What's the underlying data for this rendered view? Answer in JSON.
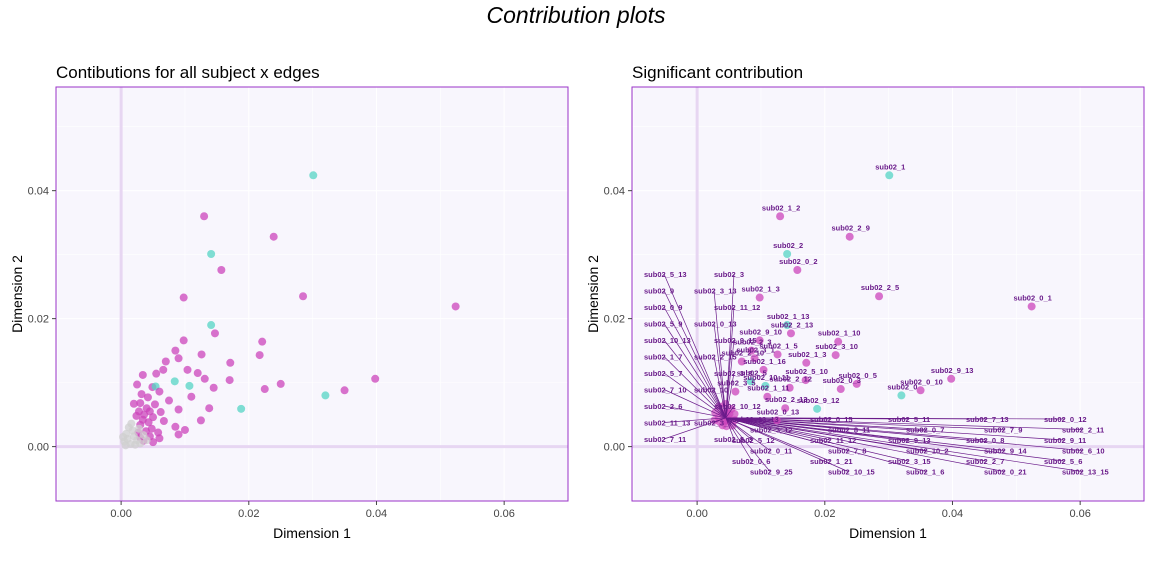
{
  "title": "Contribution plots",
  "colors": {
    "panel_bg": "#f8f6fd",
    "border": "#9a33c8",
    "origin_line": "#e7d6f2",
    "grid": "#ffffff",
    "magenta": "#cc44bb",
    "teal": "#55d4c4",
    "grey": "#cfcfcf",
    "label": "#6a1b8a",
    "segment": "#6a1b8a"
  },
  "chart_data": [
    {
      "type": "scatter",
      "title": "Contibutions for all subject x edges",
      "xlabel": "Dimension 1",
      "ylabel": "Dimension 2",
      "xlim": [
        -0.0102,
        0.07
      ],
      "ylim": [
        -0.0085,
        0.0562
      ],
      "xticks": [
        0.0,
        0.02,
        0.04,
        0.06
      ],
      "yticks": [
        0.0,
        0.02,
        0.04
      ],
      "tick_labels_x": [
        "0.00",
        "0.02",
        "0.04",
        "0.06"
      ],
      "tick_labels_y": [
        "0.00",
        "0.02",
        "0.04"
      ],
      "grid": true,
      "points": [
        {
          "x": 0.0301,
          "y": 0.0424,
          "color": "teal"
        },
        {
          "x": 0.0524,
          "y": 0.0219,
          "color": "magenta"
        },
        {
          "x": 0.013,
          "y": 0.036,
          "color": "magenta"
        },
        {
          "x": 0.0239,
          "y": 0.0328,
          "color": "magenta"
        },
        {
          "x": 0.0141,
          "y": 0.0301,
          "color": "teal"
        },
        {
          "x": 0.0157,
          "y": 0.0276,
          "color": "magenta"
        },
        {
          "x": 0.0285,
          "y": 0.0235,
          "color": "magenta"
        },
        {
          "x": 0.0098,
          "y": 0.0233,
          "color": "magenta"
        },
        {
          "x": 0.0141,
          "y": 0.019,
          "color": "teal"
        },
        {
          "x": 0.0147,
          "y": 0.0177,
          "color": "magenta"
        },
        {
          "x": 0.0221,
          "y": 0.0164,
          "color": "magenta"
        },
        {
          "x": 0.0098,
          "y": 0.0166,
          "color": "magenta"
        },
        {
          "x": 0.0085,
          "y": 0.015,
          "color": "magenta"
        },
        {
          "x": 0.0126,
          "y": 0.0144,
          "color": "magenta"
        },
        {
          "x": 0.0217,
          "y": 0.0143,
          "color": "magenta"
        },
        {
          "x": 0.009,
          "y": 0.0138,
          "color": "magenta"
        },
        {
          "x": 0.007,
          "y": 0.0133,
          "color": "magenta"
        },
        {
          "x": 0.0171,
          "y": 0.0131,
          "color": "magenta"
        },
        {
          "x": 0.0104,
          "y": 0.012,
          "color": "magenta"
        },
        {
          "x": 0.012,
          "y": 0.0115,
          "color": "magenta"
        },
        {
          "x": 0.0055,
          "y": 0.0114,
          "color": "magenta"
        },
        {
          "x": 0.0066,
          "y": 0.012,
          "color": "magenta"
        },
        {
          "x": 0.0034,
          "y": 0.0112,
          "color": "magenta"
        },
        {
          "x": 0.0398,
          "y": 0.0106,
          "color": "magenta"
        },
        {
          "x": 0.0131,
          "y": 0.0106,
          "color": "magenta"
        },
        {
          "x": 0.0084,
          "y": 0.0102,
          "color": "teal"
        },
        {
          "x": 0.017,
          "y": 0.0104,
          "color": "magenta"
        },
        {
          "x": 0.025,
          "y": 0.0098,
          "color": "magenta"
        },
        {
          "x": 0.0107,
          "y": 0.0095,
          "color": "teal"
        },
        {
          "x": 0.0025,
          "y": 0.0097,
          "color": "magenta"
        },
        {
          "x": 0.0049,
          "y": 0.0093,
          "color": "magenta"
        },
        {
          "x": 0.0054,
          "y": 0.0094,
          "color": "teal"
        },
        {
          "x": 0.0145,
          "y": 0.0092,
          "color": "magenta"
        },
        {
          "x": 0.0225,
          "y": 0.009,
          "color": "magenta"
        },
        {
          "x": 0.035,
          "y": 0.0088,
          "color": "magenta"
        },
        {
          "x": 0.032,
          "y": 0.008,
          "color": "teal"
        },
        {
          "x": 0.006,
          "y": 0.0086,
          "color": "magenta"
        },
        {
          "x": 0.0032,
          "y": 0.0082,
          "color": "magenta"
        },
        {
          "x": 0.0042,
          "y": 0.0077,
          "color": "magenta"
        },
        {
          "x": 0.011,
          "y": 0.0078,
          "color": "magenta"
        },
        {
          "x": 0.0075,
          "y": 0.0072,
          "color": "magenta"
        },
        {
          "x": 0.003,
          "y": 0.0068,
          "color": "magenta"
        },
        {
          "x": 0.0053,
          "y": 0.0066,
          "color": "magenta"
        },
        {
          "x": 0.0188,
          "y": 0.0059,
          "color": "teal"
        },
        {
          "x": 0.002,
          "y": 0.0067,
          "color": "magenta"
        },
        {
          "x": 0.0138,
          "y": 0.006,
          "color": "magenta"
        },
        {
          "x": 0.009,
          "y": 0.0058,
          "color": "magenta"
        },
        {
          "x": 0.004,
          "y": 0.006,
          "color": "magenta"
        },
        {
          "x": 0.0028,
          "y": 0.0055,
          "color": "magenta"
        },
        {
          "x": 0.0062,
          "y": 0.0054,
          "color": "magenta"
        },
        {
          "x": 0.0045,
          "y": 0.0055,
          "color": "magenta"
        },
        {
          "x": 0.0036,
          "y": 0.005,
          "color": "magenta"
        },
        {
          "x": 0.0024,
          "y": 0.0048,
          "color": "magenta"
        },
        {
          "x": 0.005,
          "y": 0.0046,
          "color": "magenta"
        },
        {
          "x": 0.0034,
          "y": 0.0042,
          "color": "magenta"
        },
        {
          "x": 0.0125,
          "y": 0.0041,
          "color": "magenta"
        },
        {
          "x": 0.0067,
          "y": 0.004,
          "color": "magenta"
        },
        {
          "x": 0.0043,
          "y": 0.0038,
          "color": "magenta"
        },
        {
          "x": 0.003,
          "y": 0.0034,
          "color": "magenta"
        },
        {
          "x": 0.0085,
          "y": 0.0031,
          "color": "magenta"
        },
        {
          "x": 0.0048,
          "y": 0.0028,
          "color": "magenta"
        },
        {
          "x": 0.01,
          "y": 0.0026,
          "color": "magenta"
        },
        {
          "x": 0.0039,
          "y": 0.0024,
          "color": "magenta"
        },
        {
          "x": 0.0027,
          "y": 0.0022,
          "color": "magenta"
        },
        {
          "x": 0.0058,
          "y": 0.0022,
          "color": "magenta"
        },
        {
          "x": 0.009,
          "y": 0.0019,
          "color": "magenta"
        },
        {
          "x": 0.0045,
          "y": 0.0016,
          "color": "magenta"
        },
        {
          "x": 0.003,
          "y": 0.0014,
          "color": "magenta"
        },
        {
          "x": 0.006,
          "y": 0.0013,
          "color": "magenta"
        },
        {
          "x": 0.0035,
          "y": 0.0009,
          "color": "magenta"
        },
        {
          "x": 0.005,
          "y": 0.0007,
          "color": "magenta"
        },
        {
          "x": 0.001,
          "y": 0.0012,
          "color": "grey"
        },
        {
          "x": 0.002,
          "y": 0.0016,
          "color": "grey"
        },
        {
          "x": 0.0005,
          "y": 0.0008,
          "color": "grey"
        },
        {
          "x": 0.0015,
          "y": 0.0004,
          "color": "grey"
        },
        {
          "x": 0.0025,
          "y": 0.001,
          "color": "grey"
        },
        {
          "x": 0.0008,
          "y": 0.002,
          "color": "grey"
        },
        {
          "x": 0.0018,
          "y": 0.0025,
          "color": "grey"
        },
        {
          "x": 0.003,
          "y": 0.0005,
          "color": "grey"
        },
        {
          "x": 0.0012,
          "y": 0.003,
          "color": "grey"
        },
        {
          "x": 0.0003,
          "y": 0.0015,
          "color": "grey"
        },
        {
          "x": 0.0022,
          "y": 0.0003,
          "color": "grey"
        },
        {
          "x": 0.0035,
          "y": 0.0018,
          "color": "grey"
        },
        {
          "x": 0.0007,
          "y": 0.0002,
          "color": "grey"
        },
        {
          "x": 0.0028,
          "y": 0.0028,
          "color": "grey"
        },
        {
          "x": 0.004,
          "y": 0.001,
          "color": "grey"
        },
        {
          "x": 0.0016,
          "y": 0.0036,
          "color": "grey"
        }
      ]
    },
    {
      "type": "scatter",
      "title": "Significant contribution",
      "xlabel": "Dimension 1",
      "ylabel": "Dimension 2",
      "xlim": [
        -0.0102,
        0.07
      ],
      "ylim": [
        -0.0085,
        0.0562
      ],
      "xticks": [
        0.0,
        0.02,
        0.04,
        0.06
      ],
      "yticks": [
        0.0,
        0.02,
        0.04
      ],
      "tick_labels_x": [
        "0.00",
        "0.02",
        "0.04",
        "0.06"
      ],
      "tick_labels_y": [
        "0.00",
        "0.02",
        "0.04"
      ],
      "grid": true,
      "cluster_point_count": 20,
      "points": [
        {
          "label": "sub02_1",
          "x": 0.0301,
          "y": 0.0424,
          "color": "teal"
        },
        {
          "label": "sub02_0_1",
          "x": 0.0524,
          "y": 0.0219,
          "color": "magenta"
        },
        {
          "label": "sub02_1_2",
          "x": 0.013,
          "y": 0.036,
          "color": "magenta"
        },
        {
          "label": "sub02_2_9",
          "x": 0.0239,
          "y": 0.0328,
          "color": "magenta"
        },
        {
          "label": "sub02_2",
          "x": 0.0141,
          "y": 0.0301,
          "color": "teal"
        },
        {
          "label": "sub02_0_2",
          "x": 0.0157,
          "y": 0.0276,
          "color": "magenta"
        },
        {
          "label": "sub02_2_5",
          "x": 0.0285,
          "y": 0.0235,
          "color": "magenta"
        },
        {
          "label": "sub02_1_3",
          "x": 0.0098,
          "y": 0.0233,
          "color": "magenta"
        },
        {
          "label": "sub02_1_13",
          "x": 0.0141,
          "y": 0.019,
          "color": "teal"
        },
        {
          "label": "sub02_2_13",
          "x": 0.0147,
          "y": 0.0177,
          "color": "magenta"
        },
        {
          "label": "sub02_1_10",
          "x": 0.0221,
          "y": 0.0164,
          "color": "magenta"
        },
        {
          "label": "sub02_9_10",
          "x": 0.0098,
          "y": 0.0166,
          "color": "magenta"
        },
        {
          "label": "sub02_2_3",
          "x": 0.0085,
          "y": 0.015,
          "color": "magenta"
        },
        {
          "label": "sub02_1_5",
          "x": 0.0126,
          "y": 0.0144,
          "color": "magenta"
        },
        {
          "label": "sub02_3_10",
          "x": 0.0217,
          "y": 0.0143,
          "color": "magenta"
        },
        {
          "label": "sub02_3_1",
          "x": 0.009,
          "y": 0.0138,
          "color": "magenta"
        },
        {
          "label": "sub02_2_10",
          "x": 0.007,
          "y": 0.0133,
          "color": "magenta"
        },
        {
          "label": "sub02_1_3",
          "x": 0.0171,
          "y": 0.0131,
          "color": "magenta"
        },
        {
          "label": "sub02_1_16",
          "x": 0.0104,
          "y": 0.012,
          "color": "magenta"
        },
        {
          "label": "sub02_9_13",
          "x": 0.0398,
          "y": 0.0106,
          "color": "magenta"
        },
        {
          "label": "sub02_5",
          "x": 0.0084,
          "y": 0.0102,
          "color": "teal"
        },
        {
          "label": "sub02_5_10",
          "x": 0.017,
          "y": 0.0104,
          "color": "magenta"
        },
        {
          "label": "sub02_0_10",
          "x": 0.035,
          "y": 0.0088,
          "color": "magenta"
        },
        {
          "label": "sub02_0_5",
          "x": 0.025,
          "y": 0.0098,
          "color": "magenta"
        },
        {
          "label": "sub02_10_11",
          "x": 0.0107,
          "y": 0.0095,
          "color": "teal"
        },
        {
          "label": "sub02_2_12",
          "x": 0.0145,
          "y": 0.0092,
          "color": "magenta"
        },
        {
          "label": "sub02_0_3",
          "x": 0.0225,
          "y": 0.009,
          "color": "magenta"
        },
        {
          "label": "sub02_0",
          "x": 0.032,
          "y": 0.008,
          "color": "teal"
        },
        {
          "label": "sub02_9_12",
          "x": 0.0188,
          "y": 0.0059,
          "color": "teal"
        },
        {
          "label": "sub02_2_13",
          "x": 0.0138,
          "y": 0.006,
          "color": "magenta"
        },
        {
          "label": "sub02_1_11",
          "x": 0.011,
          "y": 0.0078,
          "color": "magenta"
        },
        {
          "label": "sub02_0_13",
          "x": 0.0125,
          "y": 0.0041,
          "color": "magenta"
        },
        {
          "label": "sub02_3_5",
          "x": 0.006,
          "y": 0.0086,
          "color": "magenta"
        }
      ],
      "unlinked_labels": [
        "sub02_5_13",
        "sub02_3",
        "sub02_9",
        "sub02_3_13",
        "sub02_0_9",
        "sub02_11_12",
        "sub02_5_9",
        "sub02_0_13",
        "sub02_10_13",
        "sub02_9_15",
        "sub02_1_7",
        "sub02_2_15",
        "sub02_5_7",
        "sub02_3_8",
        "sub02_7_10",
        "sub02_10",
        "sub02_2_6",
        "sub02_10_12",
        "sub02_11_13",
        "sub02_3_7",
        "sub02_7_11",
        "sub02_8_3",
        "sub02_13_13",
        "sub02_0_15",
        "sub02_5_11",
        "sub02_7_13",
        "sub02_0_12",
        "sub02_3_12",
        "sub02_8_11",
        "sub02_0_7",
        "sub02_7_9",
        "sub02_2_11",
        "sub02_5_12",
        "sub02_11_12",
        "sub02_9_13",
        "sub02_0_8",
        "sub02_9_11",
        "sub02_0_11",
        "sub02_7_8",
        "sub02_10_2",
        "sub02_9_14",
        "sub02_6_10",
        "sub02_0_6",
        "sub02_1_21",
        "sub02_3_15",
        "sub02_2_7",
        "sub02_5_6",
        "sub02_9_25",
        "sub02_10_15",
        "sub02_1_6",
        "sub02_0_21",
        "sub02_13_15"
      ]
    }
  ]
}
